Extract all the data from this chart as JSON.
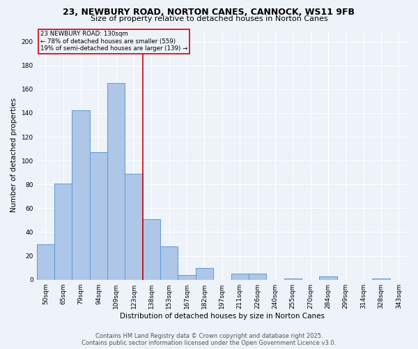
{
  "title1": "23, NEWBURY ROAD, NORTON CANES, CANNOCK, WS11 9FB",
  "title2": "Size of property relative to detached houses in Norton Canes",
  "xlabel": "Distribution of detached houses by size in Norton Canes",
  "ylabel": "Number of detached properties",
  "categories": [
    "50sqm",
    "65sqm",
    "79sqm",
    "94sqm",
    "109sqm",
    "123sqm",
    "138sqm",
    "153sqm",
    "167sqm",
    "182sqm",
    "197sqm",
    "211sqm",
    "226sqm",
    "240sqm",
    "255sqm",
    "270sqm",
    "284sqm",
    "299sqm",
    "314sqm",
    "328sqm",
    "343sqm"
  ],
  "values": [
    30,
    81,
    142,
    107,
    165,
    89,
    51,
    28,
    4,
    10,
    0,
    5,
    5,
    0,
    1,
    0,
    3,
    0,
    0,
    1,
    0
  ],
  "bar_color": "#aec6e8",
  "bar_edge_color": "#5b9bd5",
  "marker_label": "23 NEWBURY ROAD: 130sqm",
  "annotation_line1": "← 78% of detached houses are smaller (559)",
  "annotation_line2": "19% of semi-detached houses are larger (139) →",
  "marker_line_color": "#cc0000",
  "annotation_box_edge_color": "#cc0000",
  "ylim": [
    0,
    210
  ],
  "yticks": [
    0,
    20,
    40,
    60,
    80,
    100,
    120,
    140,
    160,
    180,
    200
  ],
  "background_color": "#eef2f9",
  "footer_line1": "Contains HM Land Registry data © Crown copyright and database right 2025.",
  "footer_line2": "Contains public sector information licensed under the Open Government Licence v3.0.",
  "title_fontsize": 9,
  "subtitle_fontsize": 8,
  "axis_label_fontsize": 7.5,
  "tick_fontsize": 6.5,
  "footer_fontsize": 6
}
